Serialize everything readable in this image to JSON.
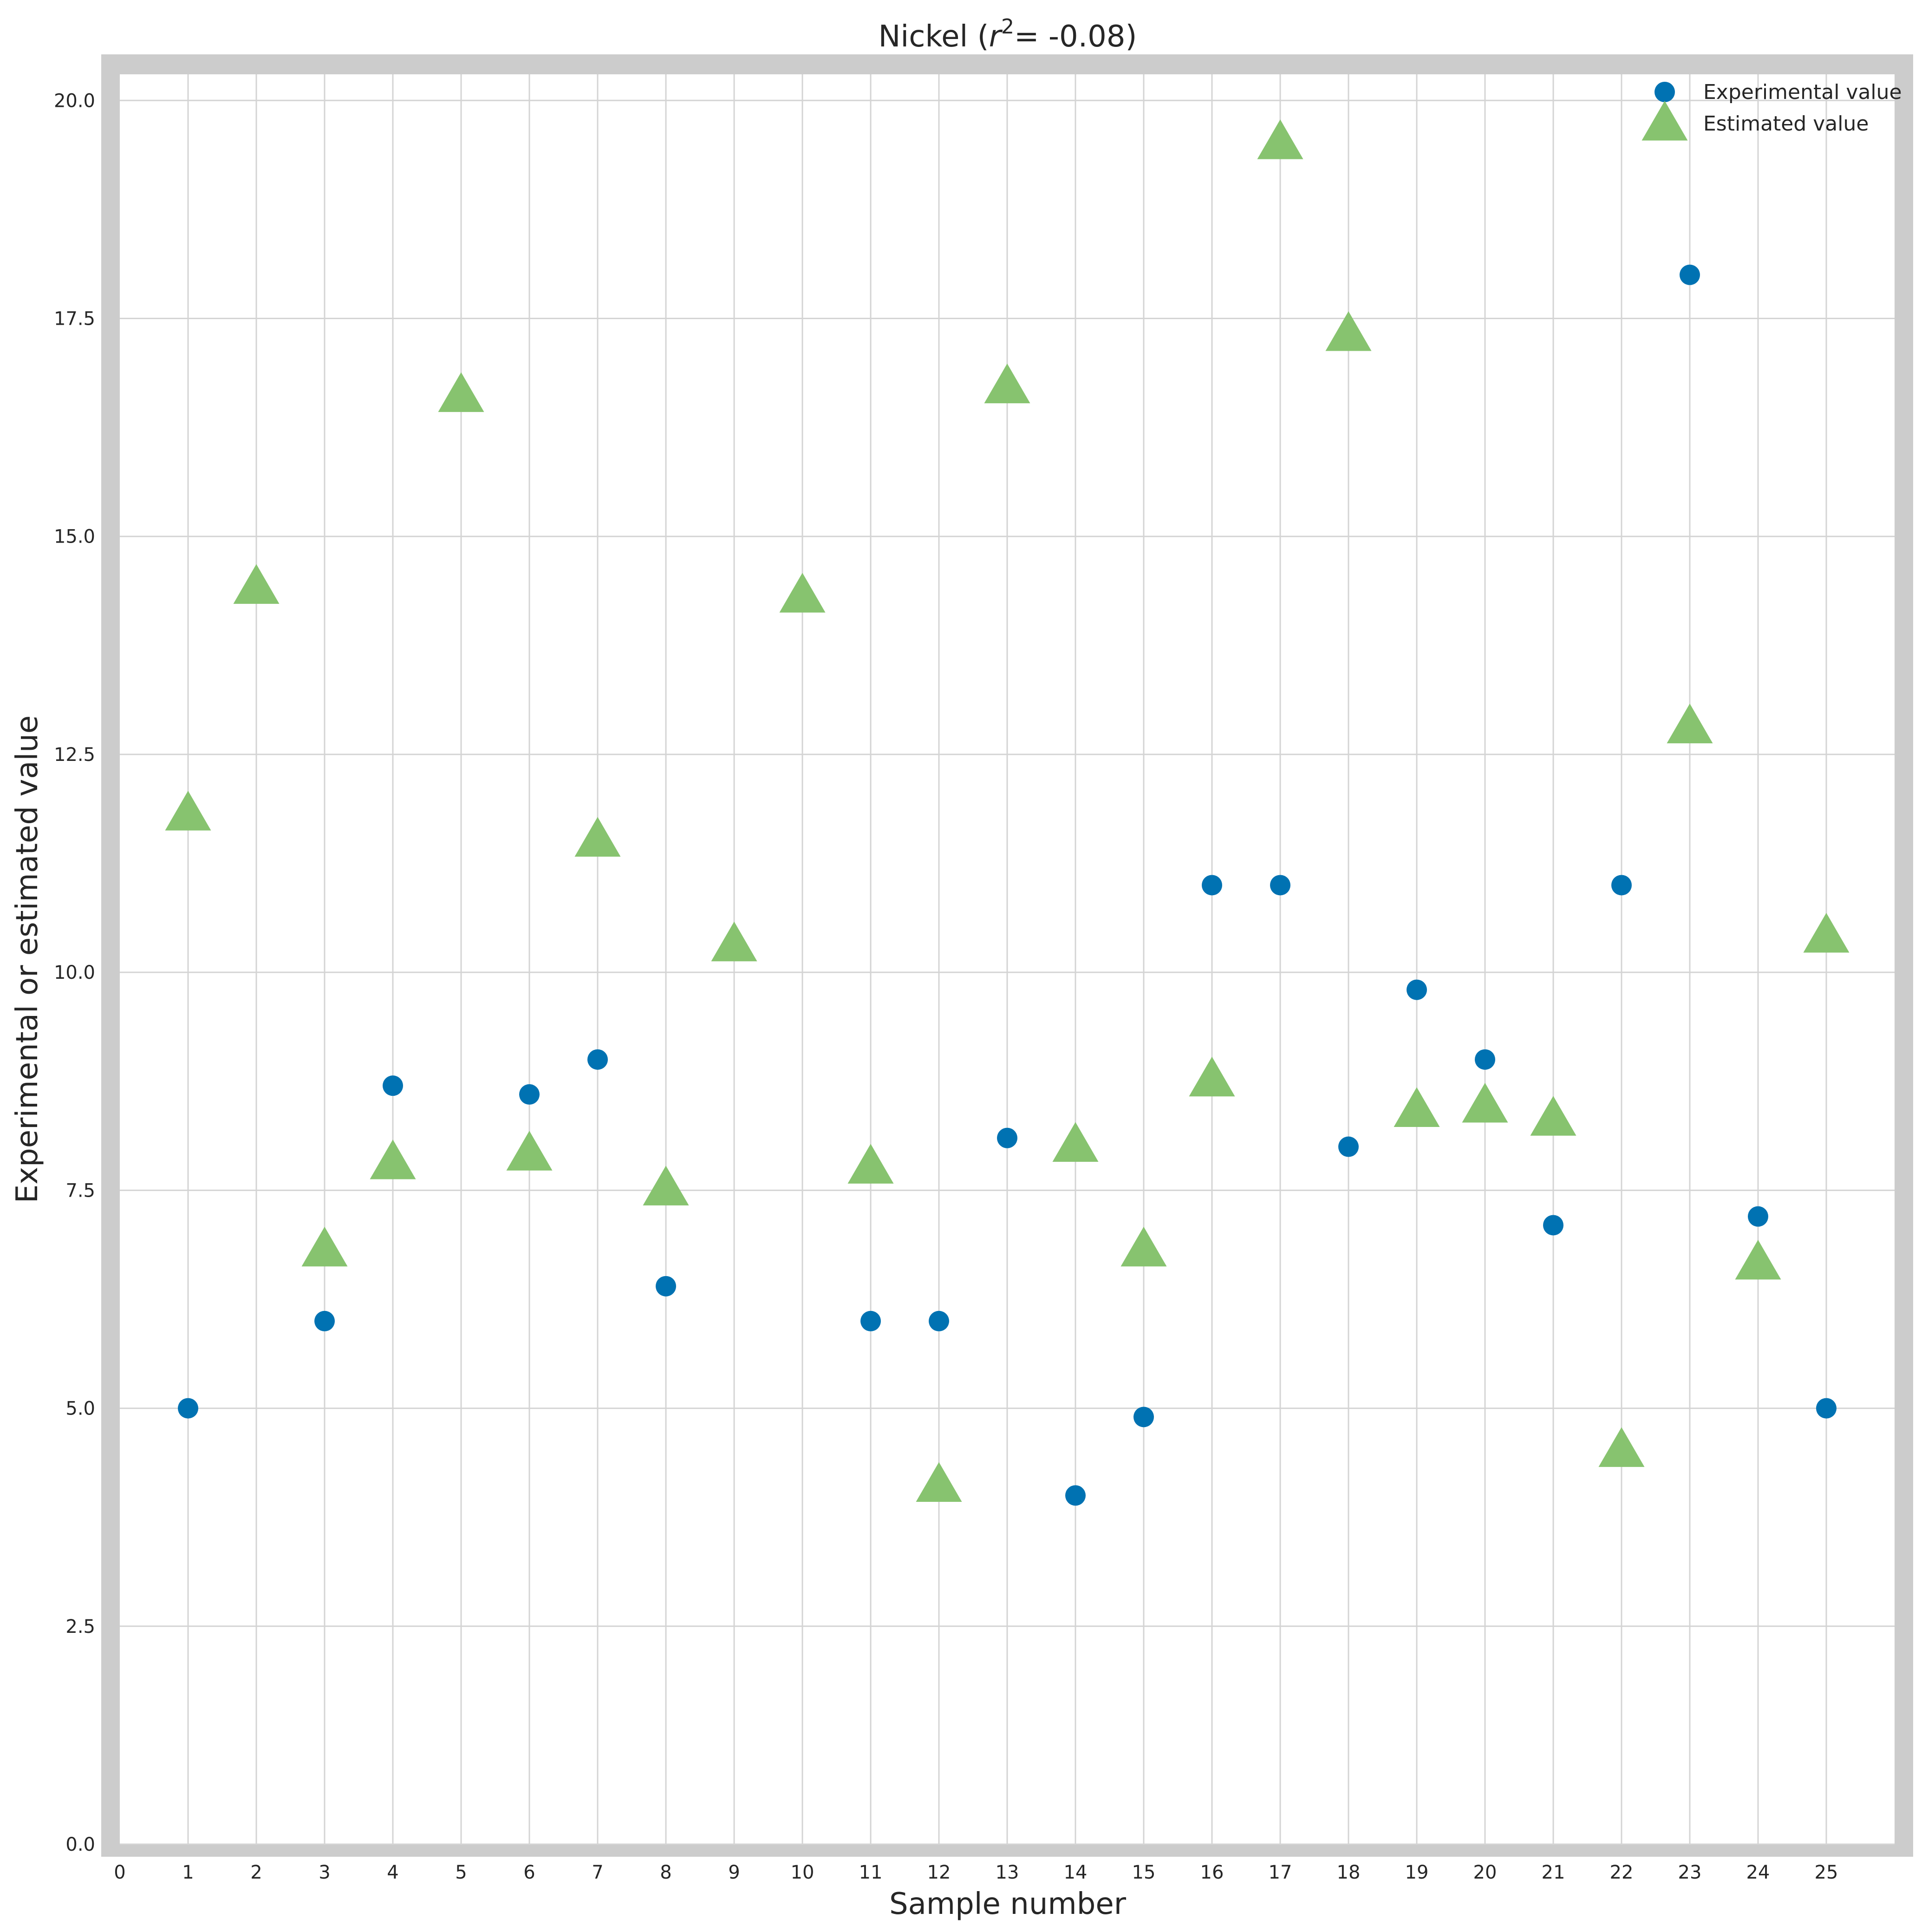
{
  "chart_data": {
    "type": "scatter",
    "title": {
      "prefix": "Nickel (",
      "var": "r",
      "sup": "2",
      "suffix": "= -0.08)"
    },
    "xlabel": "Sample number",
    "ylabel": "Experimental or estimated value",
    "xlim": [
      0,
      26
    ],
    "ylim": [
      0,
      20.3
    ],
    "xticks": [
      0,
      1,
      2,
      3,
      4,
      5,
      6,
      7,
      8,
      9,
      10,
      11,
      12,
      13,
      14,
      15,
      16,
      17,
      18,
      19,
      20,
      21,
      22,
      23,
      24,
      25
    ],
    "yticks": [
      "0.0",
      "2.5",
      "5.0",
      "7.5",
      "10.0",
      "12.5",
      "15.0",
      "17.5",
      "20.0"
    ],
    "grid": true,
    "legend_position": "top-right",
    "series": [
      {
        "name": "Experimental value",
        "marker": "circle",
        "color": "#0072B2",
        "x": [
          1,
          3,
          4,
          6,
          7,
          8,
          11,
          12,
          13,
          14,
          15,
          16,
          17,
          18,
          19,
          20,
          21,
          22,
          23,
          24,
          25
        ],
        "y": [
          5.0,
          6.0,
          8.7,
          8.6,
          9.0,
          6.4,
          6.0,
          6.0,
          8.1,
          4.0,
          4.9,
          11.0,
          11.0,
          8.0,
          9.8,
          9.0,
          7.1,
          11.0,
          18.0,
          7.2,
          5.0
        ]
      },
      {
        "name": "Estimated value",
        "marker": "triangle",
        "color": "#87C36F",
        "x": [
          1,
          2,
          3,
          4,
          5,
          6,
          7,
          8,
          9,
          10,
          11,
          12,
          13,
          14,
          15,
          16,
          17,
          18,
          19,
          20,
          21,
          22,
          23,
          24,
          25
        ],
        "y": [
          11.8,
          14.4,
          6.8,
          7.8,
          16.6,
          7.9,
          11.5,
          7.5,
          10.3,
          14.3,
          7.75,
          4.1,
          16.7,
          8.0,
          6.8,
          8.75,
          19.5,
          17.3,
          8.4,
          8.45,
          8.3,
          4.5,
          12.8,
          6.65,
          10.4
        ]
      }
    ]
  }
}
